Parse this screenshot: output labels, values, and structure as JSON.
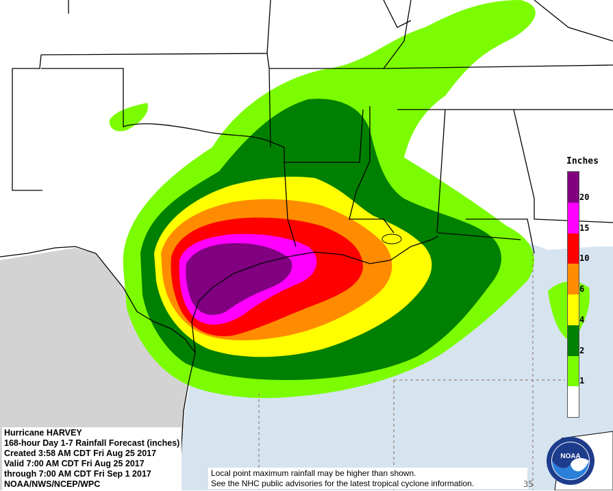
{
  "legend": {
    "title": "Inches",
    "levels": [
      {
        "label": "20",
        "color": "#800080"
      },
      {
        "label": "15",
        "color": "#ff00ff"
      },
      {
        "label": "10",
        "color": "#ff0000"
      },
      {
        "label": "6",
        "color": "#ff8c00"
      },
      {
        "label": "4",
        "color": "#ffff00"
      },
      {
        "label": "2",
        "color": "#008000"
      },
      {
        "label": "1",
        "color": "#7cfc00"
      },
      {
        "label": "",
        "color": "#ffffff"
      }
    ]
  },
  "info": {
    "line1": "Hurricane HARVEY",
    "line2": "168-hour Day 1-7 Rainfall Forecast (inches)",
    "line3": "Created 3:58 AM CDT Fri Aug 25 2017",
    "line4": "Valid 7:00 AM CDT Fri Aug 25 2017",
    "line5": "through 7:00 AM CDT Fri Sep 1 2017",
    "line6": "NOAA/NWS/NCEP/WPC"
  },
  "note": {
    "line1": "Local point maximum rainfall may be higher than shown.",
    "line2": "See the NHC public advisories for the latest tropical cyclone information."
  },
  "corner_text": "35",
  "logo": {
    "text": "NOAA"
  },
  "colors": {
    "gulf": "#d6e4f0",
    "mexico": "#d3d3d3",
    "land": "#ffffff",
    "border": "#000000"
  }
}
